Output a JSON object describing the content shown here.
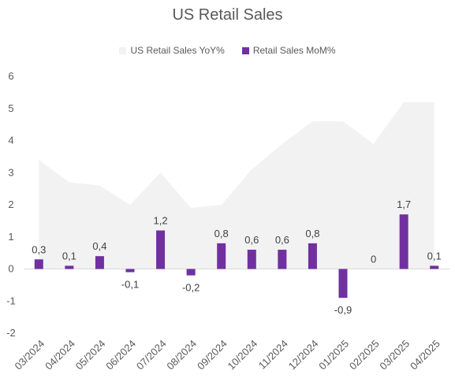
{
  "chart_data": {
    "type": "bar",
    "title": "US Retail Sales",
    "categories": [
      "03/2024",
      "04/2024",
      "05/2024",
      "06/2024",
      "07/2024",
      "08/2024",
      "09/2024",
      "10/2024",
      "11/2024",
      "12/2024",
      "01/2025",
      "02/2025",
      "03/2025",
      "04/2025"
    ],
    "series": [
      {
        "name": "US Retail Sales YoY%",
        "type": "area",
        "color": "#f2f2f2",
        "values": [
          3.4,
          2.7,
          2.6,
          2.0,
          3.0,
          1.9,
          2.0,
          3.1,
          3.9,
          4.6,
          4.6,
          3.9,
          5.2,
          5.2
        ]
      },
      {
        "name": "Retail Sales MoM%",
        "type": "bar",
        "color": "#7030a0",
        "values": [
          0.3,
          0.1,
          0.4,
          -0.1,
          1.2,
          -0.2,
          0.8,
          0.6,
          0.6,
          0.8,
          -0.9,
          0,
          1.7,
          0.1
        ],
        "labels": [
          "0,3",
          "0,1",
          "0,4",
          "-0,1",
          "1,2",
          "-0,2",
          "0,8",
          "0,6",
          "0,6",
          "0,8",
          "-0,9",
          "0",
          "1,7",
          "0,1"
        ]
      }
    ],
    "ylim": [
      -2,
      6
    ],
    "yticks": [
      -2,
      -1,
      0,
      1,
      2,
      3,
      4,
      5,
      6
    ],
    "legend_position": "top",
    "grid": false
  }
}
